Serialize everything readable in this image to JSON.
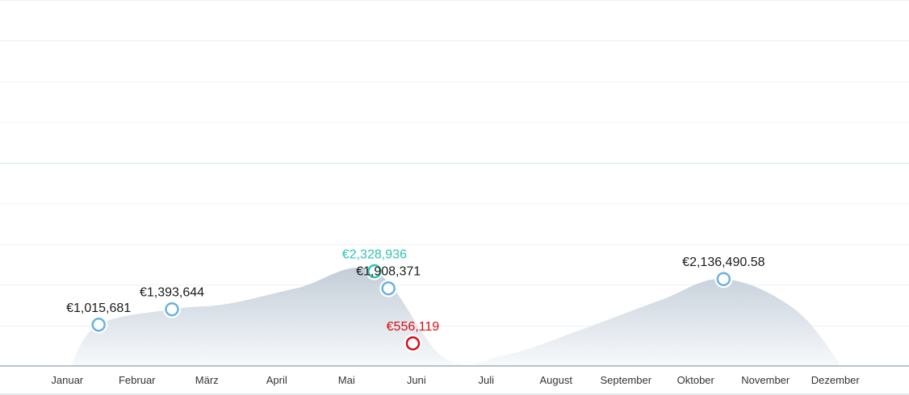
{
  "chart_data": {
    "type": "area",
    "categories": [
      "Januar",
      "Februar",
      "März",
      "April",
      "Mai",
      "Juni",
      "Juli",
      "August",
      "September",
      "Oktober",
      "November",
      "Dezember"
    ],
    "ylim": [
      0,
      9000000
    ],
    "grid": true,
    "colors": {
      "area_top": "#c3cdd8",
      "area_bottom": "#f7f9fb",
      "marker_default": "#6ab2e0",
      "marker_high": "#2ec4b6",
      "marker_low": "#d90e12",
      "label_default": "#1a1a1a"
    },
    "series": [
      {
        "x": 0.05,
        "y": 0
      },
      {
        "x": 0.45,
        "y": 1015681
      },
      {
        "x": 1.5,
        "y": 1393644
      },
      {
        "x": 2.3,
        "y": 1530000
      },
      {
        "x": 3.3,
        "y": 1920000
      },
      {
        "x": 4.4,
        "y": 2328936
      },
      {
        "x": 5.4,
        "y": 200000
      },
      {
        "x": 6.3,
        "y": 280000
      },
      {
        "x": 7.4,
        "y": 920000
      },
      {
        "x": 8.5,
        "y": 1620000
      },
      {
        "x": 9.4,
        "y": 2136490.58
      },
      {
        "x": 10.4,
        "y": 1420000
      },
      {
        "x": 11.05,
        "y": 100000
      }
    ],
    "points": [
      {
        "x": 0.45,
        "y": 1015681,
        "label": "€1,015,681",
        "kind": "default"
      },
      {
        "x": 1.5,
        "y": 1393644,
        "label": "€1,393,644",
        "kind": "default"
      },
      {
        "x": 4.4,
        "y": 2328936,
        "label": "€2,328,936",
        "kind": "high"
      },
      {
        "x": 4.6,
        "y": 1908371,
        "label": "€1,908,371",
        "kind": "default"
      },
      {
        "x": 4.95,
        "y": 556119,
        "label": "€556,119",
        "kind": "low"
      },
      {
        "x": 9.4,
        "y": 2136490.58,
        "label": "€2,136,490.58",
        "kind": "default"
      }
    ]
  }
}
